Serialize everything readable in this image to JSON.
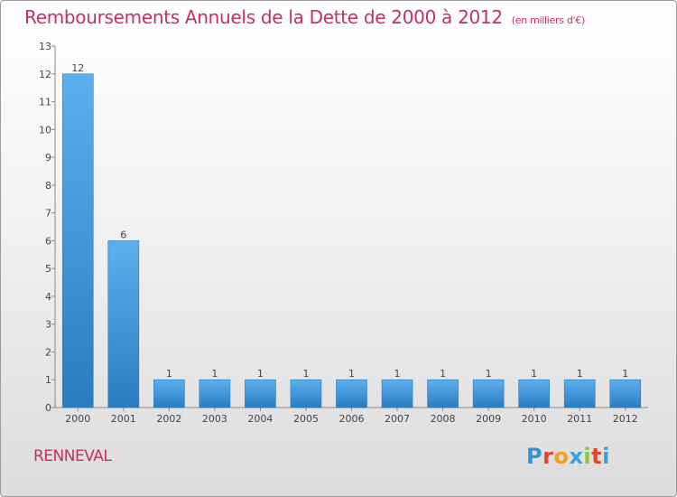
{
  "chart_data": {
    "type": "bar",
    "title": "Remboursements Annuels de la Dette de 2000 à 2012",
    "unit": "(en milliers d'€)",
    "categories": [
      "2000",
      "2001",
      "2002",
      "2003",
      "2004",
      "2005",
      "2006",
      "2007",
      "2008",
      "2009",
      "2010",
      "2011",
      "2012"
    ],
    "values": [
      12,
      6,
      1,
      1,
      1,
      1,
      1,
      1,
      1,
      1,
      1,
      1,
      1
    ],
    "ylim": [
      0,
      13
    ],
    "yticks": [
      "0",
      "1",
      "2",
      "3",
      "4",
      "5",
      "6",
      "7",
      "8",
      "9",
      "10",
      "11",
      "12",
      "13"
    ],
    "bar_color": "#4a9fe0",
    "grid": false
  },
  "location": "RENNEVAL",
  "brand": [
    "P",
    "r",
    "o",
    "x",
    "i",
    "t",
    "i"
  ]
}
